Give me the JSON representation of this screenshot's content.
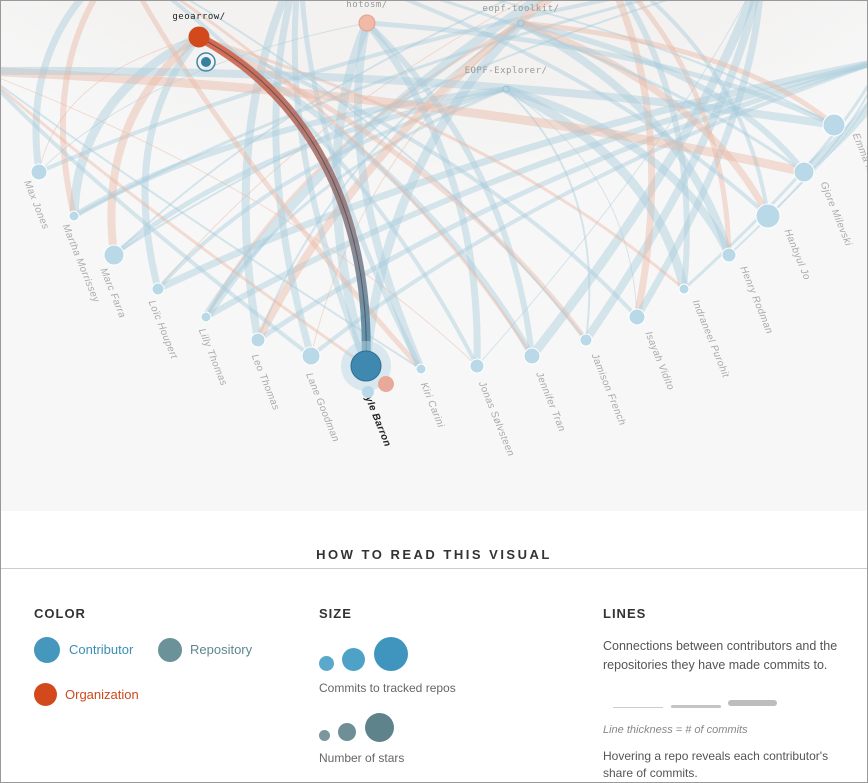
{
  "repositories": [
    {
      "label": "geoarrow/"
    },
    {
      "label": "hotosm/"
    },
    {
      "label": "eopf-toolkit/"
    },
    {
      "label": "EOPF-Explorer/"
    }
  ],
  "contributors": [
    {
      "label": "Max Jones"
    },
    {
      "label": "Martha Morrissey"
    },
    {
      "label": "Marc Farra"
    },
    {
      "label": "Loïc Houpert"
    },
    {
      "label": "Lilly Thomas"
    },
    {
      "label": "Leo Thomas"
    },
    {
      "label": "Lane Goodman"
    },
    {
      "label": "Kyle Barron"
    },
    {
      "label": "Kiri Carini"
    },
    {
      "label": "Jonas Sølvsteen"
    },
    {
      "label": "Jennifer Tran"
    },
    {
      "label": "Jamison French"
    },
    {
      "label": "Isayah Vidito"
    },
    {
      "label": "Indraneel Purohit"
    },
    {
      "label": "Henry Rodman"
    },
    {
      "label": "Hanbyul Jo"
    },
    {
      "label": "Gjore Milevski"
    },
    {
      "label": "Emma Mathot"
    }
  ],
  "legend": {
    "heading": "HOW TO READ THIS VISUAL",
    "color": {
      "title": "COLOR",
      "contributor": "Contributor",
      "repository": "Repository",
      "organization": "Organization"
    },
    "size": {
      "title": "SIZE",
      "commits": "Commits to tracked repos",
      "stars": "Number of stars"
    },
    "lines": {
      "title": "LINES",
      "description": "Connections between contributors and the repositories they have made commits to.",
      "thickness": "Line thickness = # of commits",
      "hover": "Hovering a repo reveals each contributor's share of commits."
    }
  }
}
